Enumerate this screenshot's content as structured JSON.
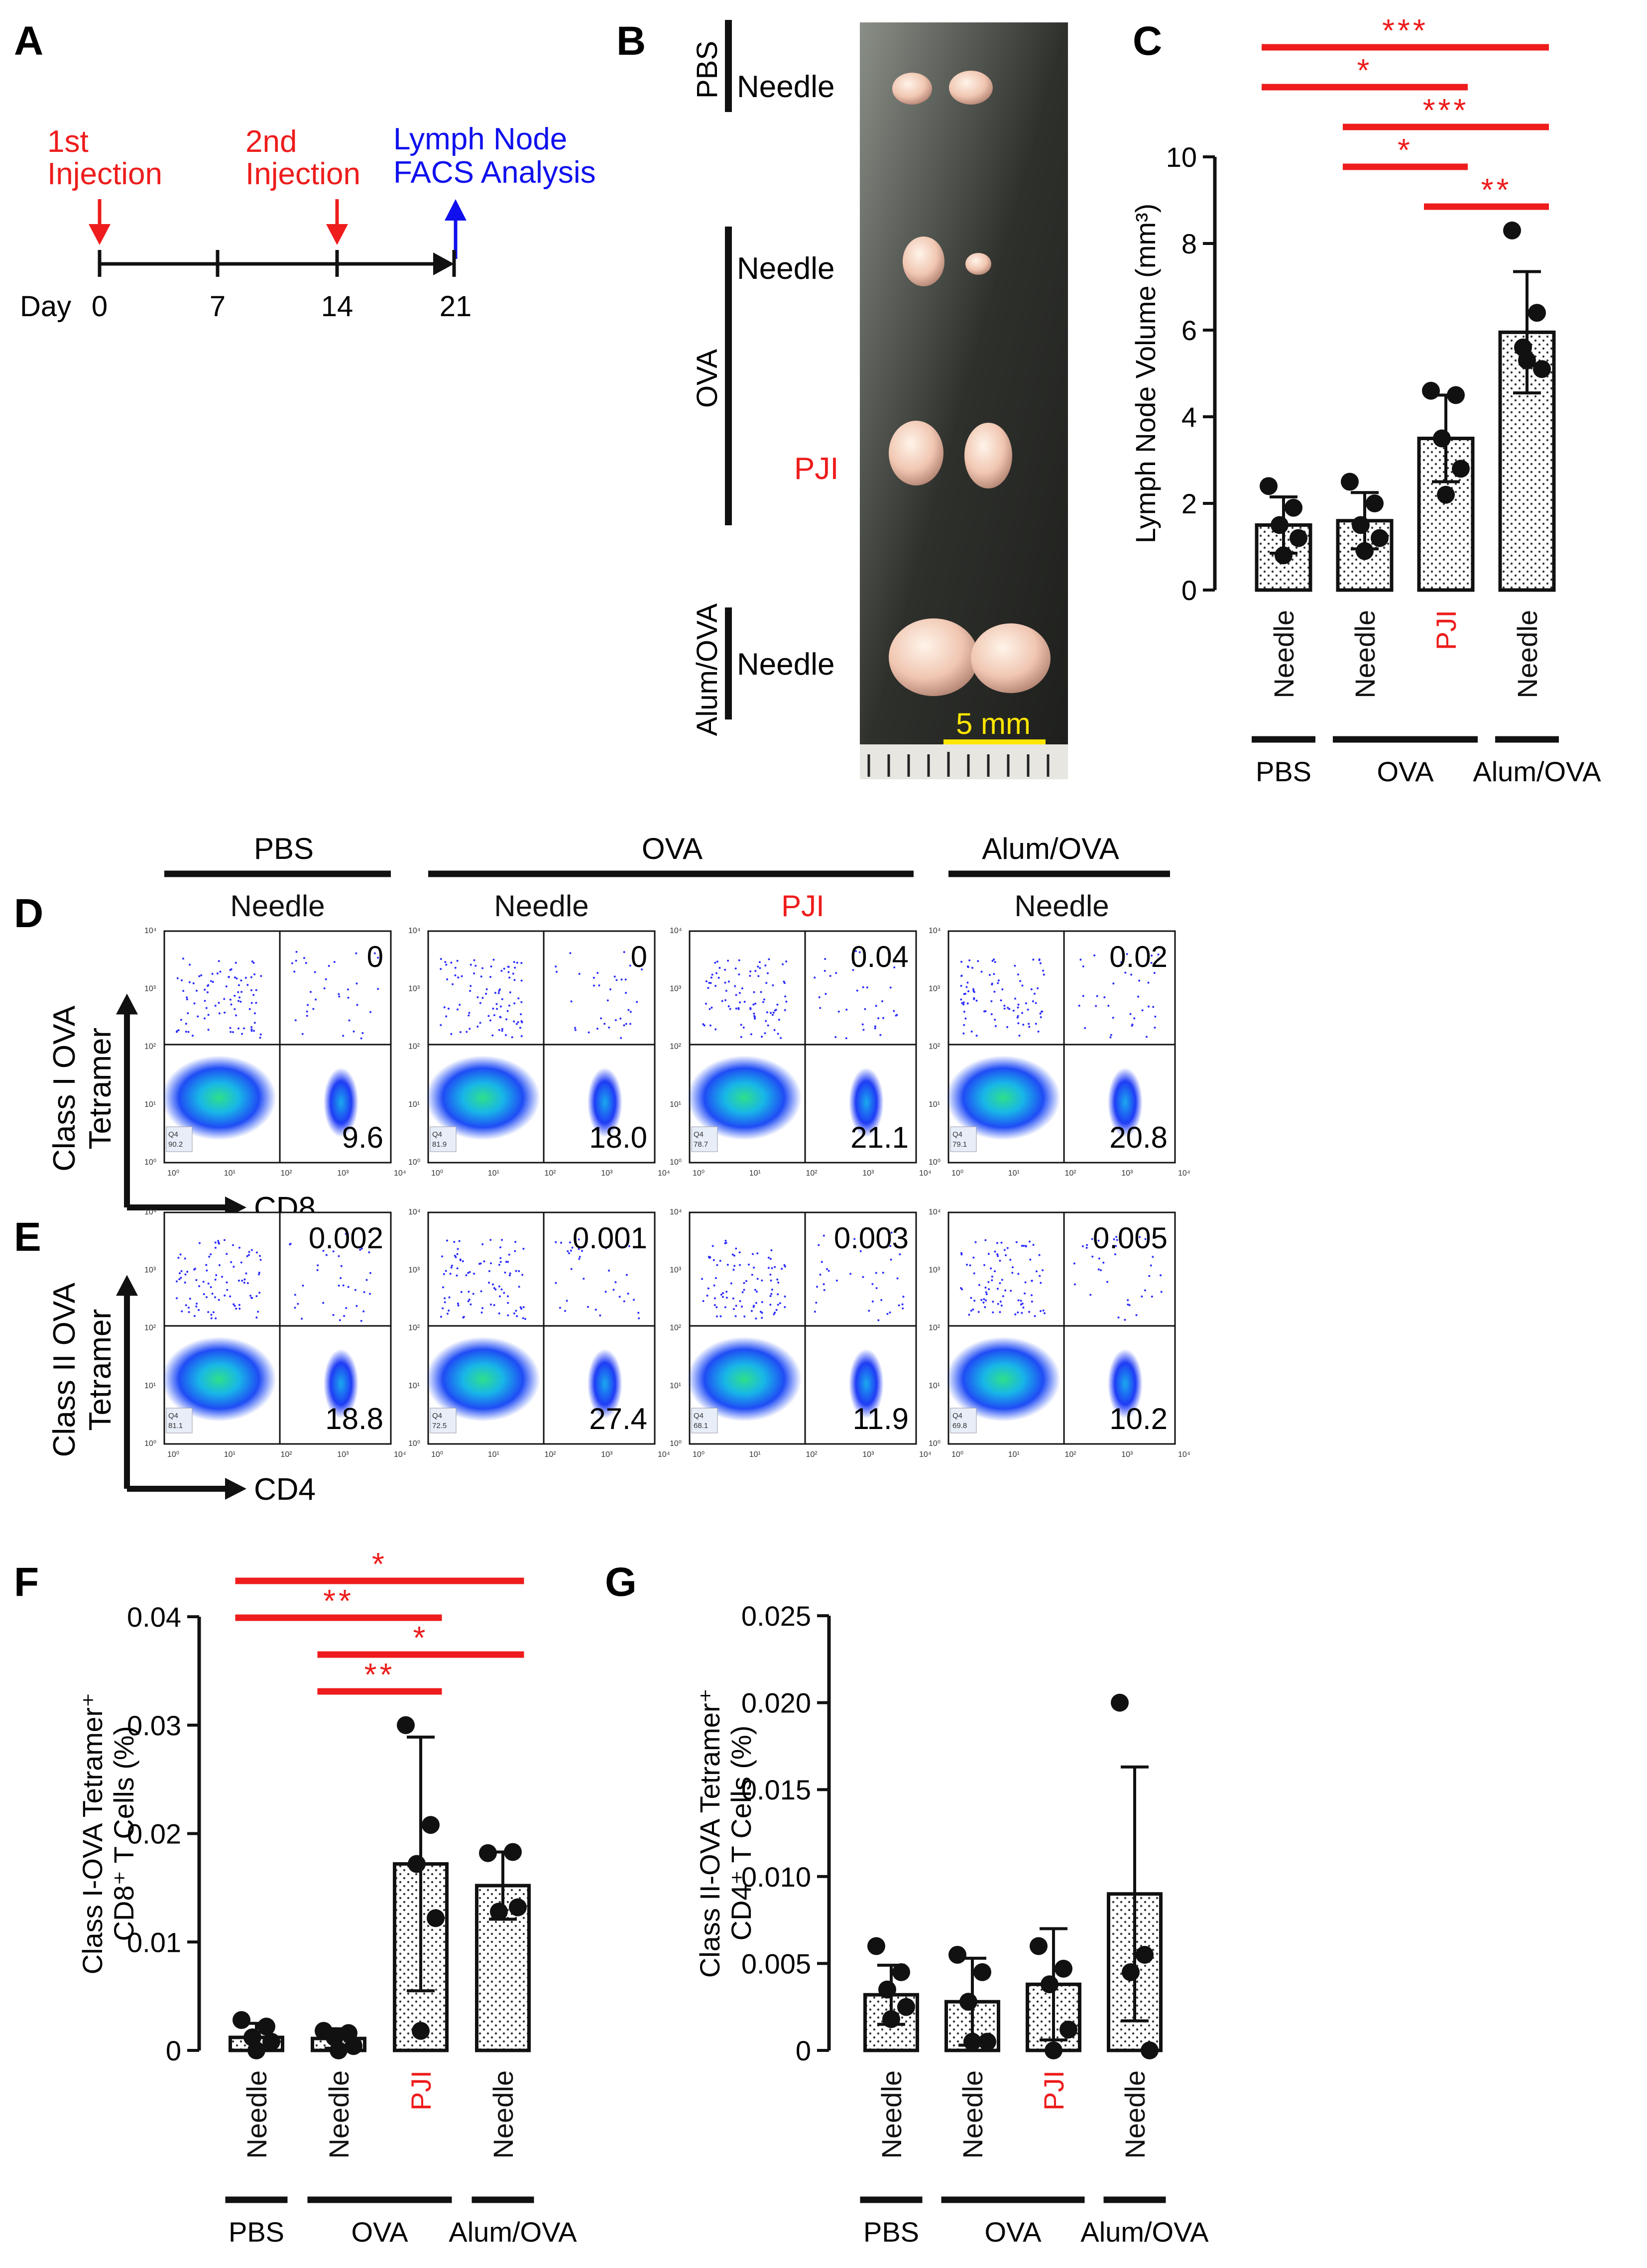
{
  "colors": {
    "red": "#ee1c1c",
    "blue": "#1010ee",
    "black": "#111111",
    "yellow": "#ffe600",
    "flow": "#2b2bff"
  },
  "panels": {
    "A": "A",
    "B": "B",
    "C": "C",
    "D": "D",
    "E": "E",
    "F": "F",
    "G": "G"
  },
  "timeline": {
    "events": [
      {
        "line1": "1st",
        "line2": "Injection",
        "day": 0,
        "color": "red",
        "direction": "down"
      },
      {
        "line1": "2nd",
        "line2": "Injection",
        "day": 14,
        "color": "red",
        "direction": "down"
      },
      {
        "line1": "Lymph Node",
        "line2": "FACS Analysis",
        "day": 21,
        "color": "blue",
        "direction": "up"
      }
    ],
    "day_label": "Day",
    "ticks": [
      "0",
      "7",
      "14",
      "21"
    ]
  },
  "photo": {
    "groups": [
      {
        "group": "PBS",
        "method": "Needle",
        "method_color": "black"
      },
      {
        "group": "OVA",
        "method": "Needle",
        "method_color": "black"
      },
      {
        "group": "",
        "method": "PJI",
        "method_color": "red"
      },
      {
        "group": "Alum/OVA",
        "method": "Needle",
        "method_color": "black"
      }
    ],
    "scale_label": "5 mm"
  },
  "groups": [
    {
      "method": "Needle",
      "method_color": "black"
    },
    {
      "method": "Needle",
      "method_color": "black"
    },
    {
      "method": "PJI",
      "method_color": "red"
    },
    {
      "method": "Needle",
      "method_color": "black"
    }
  ],
  "group_brackets": [
    "PBS",
    "OVA",
    "Alum/OVA"
  ],
  "flow": {
    "header_groups": [
      "PBS",
      "OVA",
      "Alum/OVA"
    ],
    "header_methods": [
      {
        "label": "Needle",
        "color": "black"
      },
      {
        "label": "Needle",
        "color": "black"
      },
      {
        "label": "PJI",
        "color": "red"
      },
      {
        "label": "Needle",
        "color": "black"
      }
    ],
    "row_D": {
      "ylabel1": "Class I OVA",
      "ylabel2": "Tetramer",
      "xlabel": "CD8",
      "upper_right": [
        "0",
        "0",
        "0.04",
        "0.02"
      ],
      "lower_right": [
        "9.6",
        "18.0",
        "21.1",
        "20.8"
      ],
      "q4": [
        "90.2",
        "81.9",
        "78.7",
        "79.1"
      ]
    },
    "row_E": {
      "ylabel1": "Class II OVA",
      "ylabel2": "Tetramer",
      "xlabel": "CD4",
      "upper_right": [
        "0.002",
        "0.001",
        "0.003",
        "0.005"
      ],
      "lower_right": [
        "18.8",
        "27.4",
        "11.9",
        "10.2"
      ],
      "q4": [
        "81.1",
        "72.5",
        "68.1",
        "69.8"
      ]
    },
    "q4_label": "Q4",
    "axis_ticks": [
      "10⁰",
      "10¹",
      "10²",
      "10³",
      "10⁴"
    ]
  },
  "chart_data": [
    {
      "panel": "C",
      "type": "bar",
      "ylabel": "Lymph Node Volume (mm³)",
      "ylim": [
        0,
        10
      ],
      "yticks": [
        "0",
        "2",
        "4",
        "6",
        "8",
        "10"
      ],
      "categories": [
        "PBS Needle",
        "OVA Needle",
        "OVA PJI",
        "Alum/OVA Needle"
      ],
      "values": [
        1.5,
        1.6,
        3.5,
        5.95
      ],
      "errors": [
        0.65,
        0.65,
        1.0,
        1.4
      ],
      "points": [
        [
          2.4,
          1.9,
          1.5,
          1.2,
          0.8
        ],
        [
          2.5,
          2.0,
          1.5,
          1.2,
          0.9
        ],
        [
          4.6,
          4.5,
          3.5,
          2.8,
          2.2
        ],
        [
          8.3,
          6.4,
          5.6,
          5.1,
          5.3
        ]
      ],
      "significance": [
        {
          "from": 0,
          "to": 3,
          "stars": "***"
        },
        {
          "from": 0,
          "to": 2,
          "stars": "*"
        },
        {
          "from": 1,
          "to": 3,
          "stars": "***"
        },
        {
          "from": 1,
          "to": 2,
          "stars": "*"
        },
        {
          "from": 2,
          "to": 3,
          "stars": "**"
        }
      ]
    },
    {
      "panel": "F",
      "type": "bar",
      "ylabel": "Class I-OVA Tetramer⁺ CD8⁺ T Cells (%)",
      "ylabel1": "Class I-OVA Tetramer⁺",
      "ylabel2": "CD8⁺ T Cells (%)",
      "ylim": [
        0,
        0.04
      ],
      "yticks": [
        "0",
        "0.01",
        "0.02",
        "0.03",
        "0.04"
      ],
      "categories": [
        "PBS Needle",
        "OVA Needle",
        "OVA PJI",
        "Alum/OVA Needle"
      ],
      "values": [
        0.0012,
        0.0011,
        0.0172,
        0.0152
      ],
      "errors": [
        0.0013,
        0.0009,
        0.0117,
        0.0031
      ],
      "points": [
        [
          0.0028,
          0.0022,
          0.0012,
          0.0008,
          0.0
        ],
        [
          0.0018,
          0.0016,
          0.0012,
          0.0004,
          0.0
        ],
        [
          0.03,
          0.0208,
          0.0172,
          0.0122,
          0.0018
        ],
        [
          0.0182,
          0.0183,
          0.0128,
          0.0132
        ]
      ],
      "significance": [
        {
          "from": 0,
          "to": 3,
          "stars": "*"
        },
        {
          "from": 0,
          "to": 2,
          "stars": "**"
        },
        {
          "from": 1,
          "to": 3,
          "stars": "*"
        },
        {
          "from": 1,
          "to": 2,
          "stars": "**"
        }
      ]
    },
    {
      "panel": "G",
      "type": "bar",
      "ylabel": "Class II-OVA Tetramer⁺ CD4⁺ T Cells (%)",
      "ylabel1": "Class II-OVA Tetramer⁺",
      "ylabel2": "CD4⁺ T Cells (%)",
      "ylim": [
        0,
        0.025
      ],
      "yticks": [
        "0",
        "0.005",
        "0.010",
        "0.015",
        "0.020",
        "0.025"
      ],
      "categories": [
        "PBS Needle",
        "OVA Needle",
        "OVA PJI",
        "Alum/OVA Needle"
      ],
      "values": [
        0.0032,
        0.0028,
        0.0038,
        0.009
      ],
      "errors": [
        0.0017,
        0.0025,
        0.0032,
        0.0073
      ],
      "points": [
        [
          0.006,
          0.0045,
          0.0035,
          0.0025,
          0.0018
        ],
        [
          0.0055,
          0.0045,
          0.0028,
          0.0005,
          0.0005
        ],
        [
          0.006,
          0.0047,
          0.0038,
          0.0012,
          0.0
        ],
        [
          0.02,
          0.0055,
          0.0045,
          0.0
        ]
      ],
      "significance": []
    }
  ]
}
